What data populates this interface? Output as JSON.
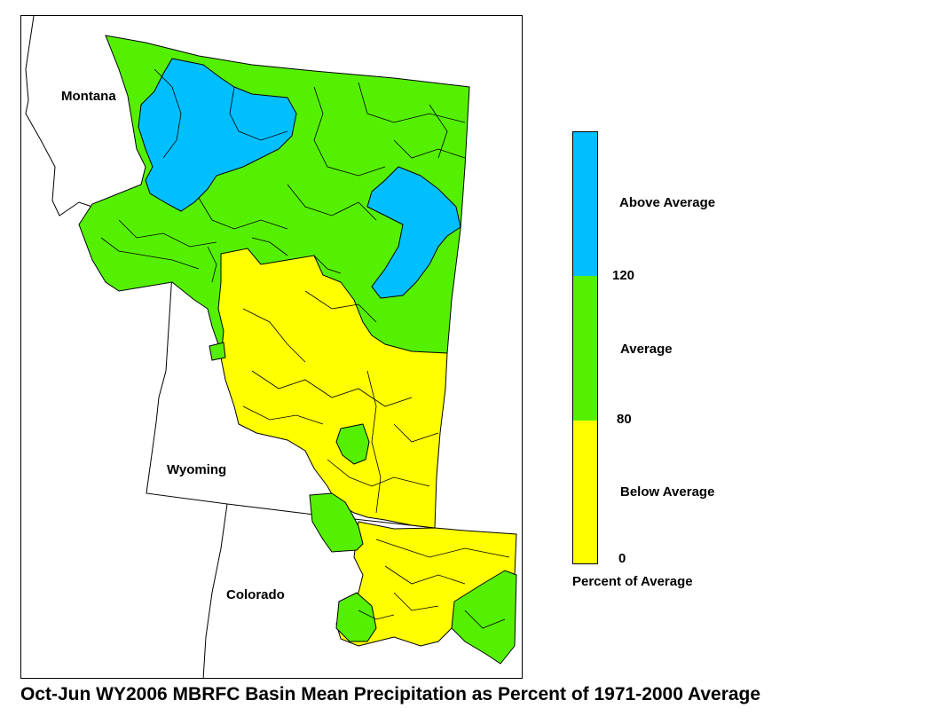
{
  "caption": "Oct-Jun WY2006 MBRFC Basin Mean Precipitation as Percent of 1971-2000 Average",
  "map": {
    "state_labels": {
      "montana": "Montana",
      "wyoming": "Wyoming",
      "colorado": "Colorado"
    },
    "colors": {
      "above": "#00bfff",
      "average": "#55f000",
      "below": "#ffff00",
      "outline": "#000000",
      "background": "#ffffff"
    }
  },
  "legend": {
    "title": "Percent of Average",
    "categories": [
      {
        "label": "Above Average",
        "color": "#00bfff",
        "min": 120
      },
      {
        "label": "Average",
        "color": "#55f000",
        "min": 80,
        "max": 120
      },
      {
        "label": "Below Average",
        "color": "#ffff00",
        "min": 0,
        "max": 80
      }
    ],
    "ticks": [
      "120",
      "80",
      "0"
    ]
  }
}
